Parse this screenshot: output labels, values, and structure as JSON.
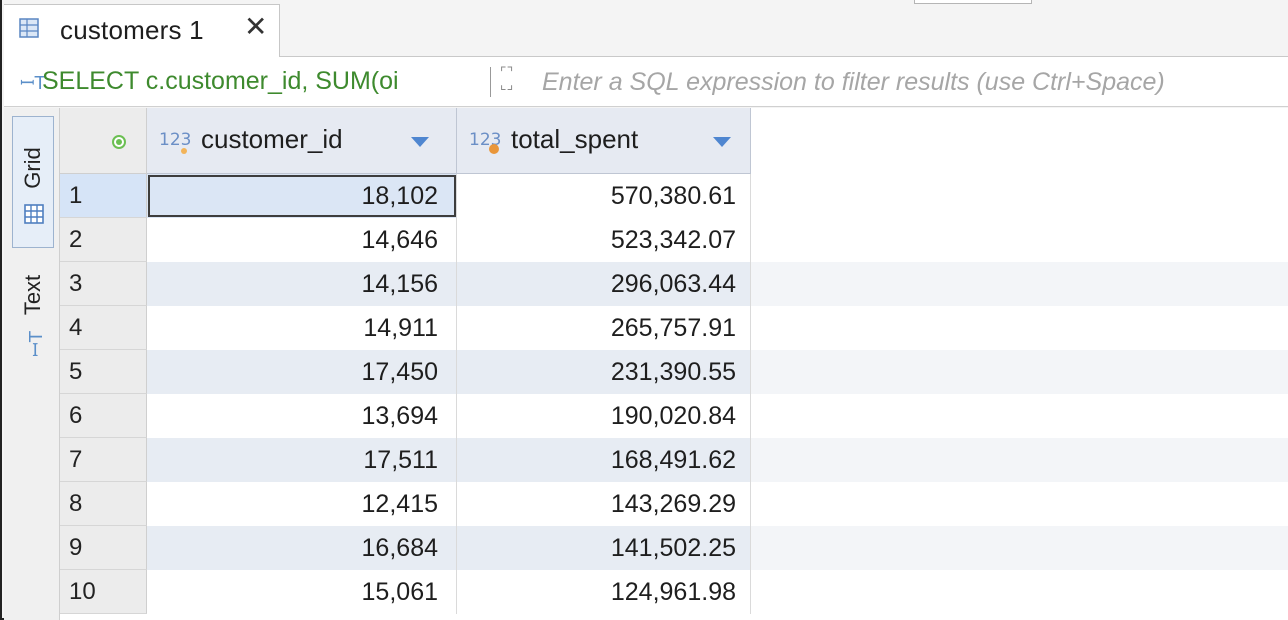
{
  "tab": {
    "label": "customers 1",
    "close_symbol": "✕",
    "icon": "table-icon"
  },
  "filter_bar": {
    "sql_icon": "sql-text-icon",
    "sql_preview": "SELECT c.customer_id, SUM(oi",
    "expand_icon": "expand-icon",
    "placeholder": "Enter a SQL expression to filter results (use Ctrl+Space)"
  },
  "side_tabs": {
    "grid_label": "Grid",
    "text_label": "Text",
    "active": "Grid"
  },
  "columns": [
    {
      "name": "customer_id",
      "type_icon": "123"
    },
    {
      "name": "total_spent",
      "type_icon": "123"
    }
  ],
  "rows": [
    {
      "num": "1",
      "customer_id": "18,102",
      "total_spent": "570,380.61"
    },
    {
      "num": "2",
      "customer_id": "14,646",
      "total_spent": "523,342.07"
    },
    {
      "num": "3",
      "customer_id": "14,156",
      "total_spent": "296,063.44"
    },
    {
      "num": "4",
      "customer_id": "14,911",
      "total_spent": "265,757.91"
    },
    {
      "num": "5",
      "customer_id": "17,450",
      "total_spent": "231,390.55"
    },
    {
      "num": "6",
      "customer_id": "13,694",
      "total_spent": "190,020.84"
    },
    {
      "num": "7",
      "customer_id": "17,511",
      "total_spent": "168,491.62"
    },
    {
      "num": "8",
      "customer_id": "12,415",
      "total_spent": "143,269.29"
    },
    {
      "num": "9",
      "customer_id": "16,684",
      "total_spent": "141,502.25"
    },
    {
      "num": "10",
      "customer_id": "15,061",
      "total_spent": "124,961.98"
    }
  ],
  "colors": {
    "sql_green": "#3e8a2e",
    "accent_blue": "#4f86d0",
    "stripe": "#e7ecf3"
  }
}
